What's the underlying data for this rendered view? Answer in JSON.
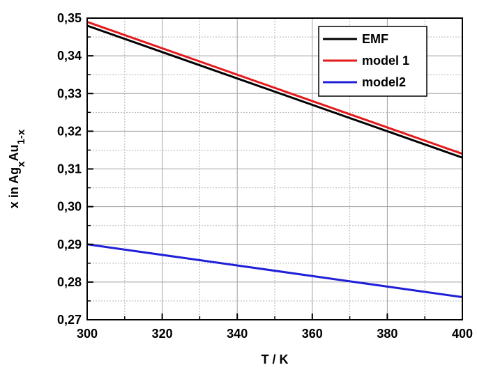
{
  "chart_data": {
    "type": "line",
    "xlabel": "T / K",
    "ylabel": {
      "parts": [
        {
          "text": "x in Ag",
          "shift": "base"
        },
        {
          "text": "x",
          "shift": "sub"
        },
        {
          "text": "Au",
          "shift": "base"
        },
        {
          "text": "1-x",
          "shift": "sub"
        }
      ]
    },
    "xlim": [
      300,
      400
    ],
    "ylim": [
      0.27,
      0.35
    ],
    "x_ticks": [
      300,
      320,
      340,
      360,
      380,
      400
    ],
    "x_tick_labels": [
      "300",
      "320",
      "340",
      "360",
      "380",
      "400"
    ],
    "y_ticks": [
      0.27,
      0.28,
      0.29,
      0.3,
      0.31,
      0.32,
      0.33,
      0.34,
      0.35
    ],
    "y_tick_labels": [
      "0,27",
      "0,28",
      "0,29",
      "0,30",
      "0,31",
      "0,32",
      "0,33",
      "0,34",
      "0,35"
    ],
    "grid": true,
    "minor_grid": true,
    "legend_position": "top-right",
    "series": [
      {
        "name": "EMF",
        "color": "#000000",
        "x": [
          300,
          400
        ],
        "y": [
          0.348,
          0.313
        ]
      },
      {
        "name": "model 1",
        "color": "#e31a1c",
        "x": [
          300,
          400
        ],
        "y": [
          0.349,
          0.314
        ]
      },
      {
        "name": "model2",
        "color": "#1f1fd8",
        "x": [
          300,
          400
        ],
        "y": [
          0.29,
          0.276
        ]
      }
    ]
  }
}
